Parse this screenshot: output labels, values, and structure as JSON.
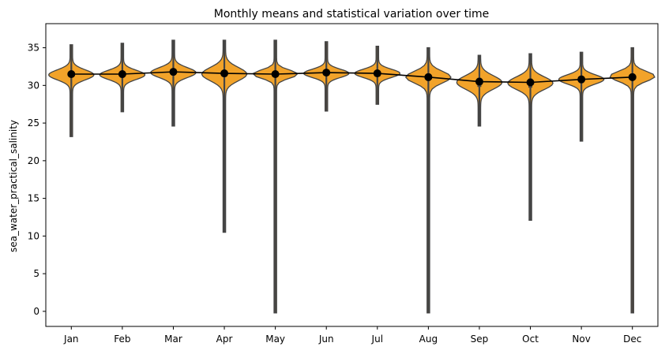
{
  "chart_data": {
    "type": "violin",
    "title": "Monthly means and statistical variation over time",
    "xlabel": "",
    "ylabel": "sea_water_practical_salinity",
    "categories": [
      "Jan",
      "Feb",
      "Mar",
      "Apr",
      "May",
      "Jun",
      "Jul",
      "Aug",
      "Sep",
      "Oct",
      "Nov",
      "Dec"
    ],
    "ylim": [
      -2,
      38.2
    ],
    "yticks": [
      0,
      5,
      10,
      15,
      20,
      25,
      30,
      35
    ],
    "grid": false,
    "violin_color": "#f2a32a",
    "violin_edge_color": "#444444",
    "mean_line_color": "#000000",
    "distributions": [
      {
        "month": "Jan",
        "min": 23.2,
        "max": 35.4,
        "q1": 31.1,
        "median": 31.4,
        "q3": 31.7,
        "spread": 1.2
      },
      {
        "month": "Feb",
        "min": 26.5,
        "max": 35.6,
        "q1": 31.0,
        "median": 31.4,
        "q3": 31.8,
        "spread": 1.1
      },
      {
        "month": "Mar",
        "min": 24.6,
        "max": 36.0,
        "q1": 31.3,
        "median": 31.7,
        "q3": 32.1,
        "spread": 1.2
      },
      {
        "month": "Apr",
        "min": 10.5,
        "max": 36.0,
        "q1": 31.1,
        "median": 31.5,
        "q3": 31.9,
        "spread": 1.6
      },
      {
        "month": "May",
        "min": -0.2,
        "max": 36.0,
        "q1": 31.2,
        "median": 31.5,
        "q3": 31.8,
        "spread": 1.0
      },
      {
        "month": "Jun",
        "min": 26.6,
        "max": 35.8,
        "q1": 31.3,
        "median": 31.6,
        "q3": 31.9,
        "spread": 1.0
      },
      {
        "month": "Jul",
        "min": 27.5,
        "max": 35.2,
        "q1": 31.3,
        "median": 31.6,
        "q3": 31.9,
        "spread": 1.0
      },
      {
        "month": "Aug",
        "min": -0.2,
        "max": 35.0,
        "q1": 30.6,
        "median": 31.1,
        "q3": 31.6,
        "spread": 1.4
      },
      {
        "month": "Sep",
        "min": 24.6,
        "max": 34.0,
        "q1": 29.8,
        "median": 30.4,
        "q3": 31.0,
        "spread": 1.6
      },
      {
        "month": "Oct",
        "min": 12.1,
        "max": 34.2,
        "q1": 29.7,
        "median": 30.3,
        "q3": 30.9,
        "spread": 1.5
      },
      {
        "month": "Nov",
        "min": 22.6,
        "max": 34.4,
        "q1": 30.3,
        "median": 30.8,
        "q3": 31.2,
        "spread": 1.1
      },
      {
        "month": "Dec",
        "min": -0.2,
        "max": 35.0,
        "q1": 30.8,
        "median": 31.2,
        "q3": 31.6,
        "spread": 1.2
      }
    ],
    "means": [
      31.5,
      31.5,
      31.8,
      31.6,
      31.5,
      31.7,
      31.6,
      31.1,
      30.5,
      30.4,
      30.8,
      31.1
    ]
  }
}
